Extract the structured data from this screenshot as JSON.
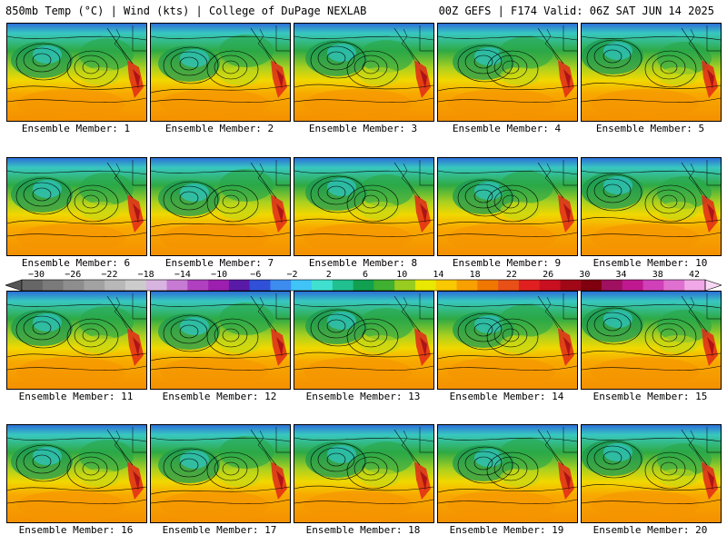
{
  "header": {
    "left_title": "850mb Temp (°C) | Wind (kts) | College of DuPage NEXLAB",
    "right_title": "00Z GEFS | F174 Valid: 06Z SAT JUN 14 2025"
  },
  "members": [
    {
      "label": "Ensemble Member: 1"
    },
    {
      "label": "Ensemble Member: 2"
    },
    {
      "label": "Ensemble Member: 3"
    },
    {
      "label": "Ensemble Member: 4"
    },
    {
      "label": "Ensemble Member: 5"
    },
    {
      "label": "Ensemble Member: 6"
    },
    {
      "label": "Ensemble Member: 7"
    },
    {
      "label": "Ensemble Member: 8"
    },
    {
      "label": "Ensemble Member: 9"
    },
    {
      "label": "Ensemble Member: 10"
    },
    {
      "label": "Ensemble Member: 11"
    },
    {
      "label": "Ensemble Member: 12"
    },
    {
      "label": "Ensemble Member: 13"
    },
    {
      "label": "Ensemble Member: 14"
    },
    {
      "label": "Ensemble Member: 15"
    },
    {
      "label": "Ensemble Member: 16"
    },
    {
      "label": "Ensemble Member: 17"
    },
    {
      "label": "Ensemble Member: 18"
    },
    {
      "label": "Ensemble Member: 19"
    },
    {
      "label": "Ensemble Member: 20"
    }
  ],
  "colorbar": {
    "tick_labels": [
      "−30",
      "−26",
      "−22",
      "−18",
      "−14",
      "−10",
      "−6",
      "−2",
      "2",
      "6",
      "10",
      "14",
      "18",
      "22",
      "26",
      "30",
      "34",
      "38",
      "42"
    ],
    "colors": [
      "#666666",
      "#7a7a7a",
      "#8e8e8e",
      "#a2a2a2",
      "#b8b8b8",
      "#cccccc",
      "#d8b4e0",
      "#c77ad4",
      "#b040c0",
      "#9c1fb0",
      "#5a1aa8",
      "#3050d8",
      "#3c8cf0",
      "#40c4f8",
      "#40e0d0",
      "#20c090",
      "#10a050",
      "#40b030",
      "#98cc20",
      "#e8e800",
      "#f8c800",
      "#f8a000",
      "#f07800",
      "#e85018",
      "#e02020",
      "#c81020",
      "#a00818",
      "#800010",
      "#a01060",
      "#c01890",
      "#d040b8",
      "#e070d0",
      "#f0a8e8"
    ]
  }
}
